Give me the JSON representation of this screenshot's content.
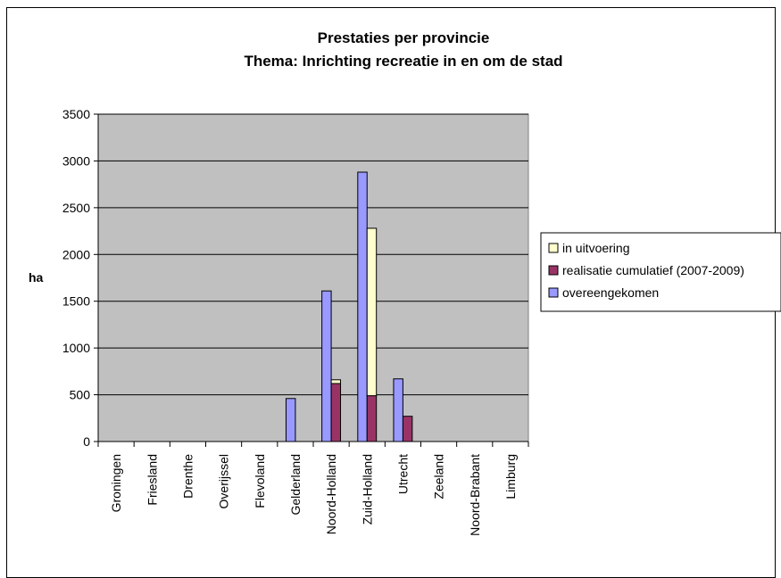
{
  "chart_data": {
    "type": "bar",
    "title": "Prestaties per provincie",
    "subtitle": "Thema: Inrichting recreatie in en om de stad",
    "xlabel": "",
    "ylabel": "ha",
    "ylim": [
      0,
      3500
    ],
    "yticks": [
      0,
      500,
      1000,
      1500,
      2000,
      2500,
      3000,
      3500
    ],
    "grid": true,
    "legend": "right",
    "categories": [
      "Groningen",
      "Friesland",
      "Drenthe",
      "Overijssel",
      "Flevoland",
      "Gelderland",
      "Noord-Holland",
      "Zuid-Holland",
      "Utrecht",
      "Zeeland",
      "Noord-Brabant",
      "Limburg"
    ],
    "series": [
      {
        "name": "overeengekomen",
        "color": "#9999ff",
        "stack": "a",
        "values": [
          0,
          0,
          0,
          0,
          0,
          460,
          1610,
          2880,
          670,
          0,
          0,
          0
        ]
      },
      {
        "name": "realisatie cumulatief (2007-2009)",
        "color": "#993366",
        "stack": "b",
        "values": [
          0,
          0,
          0,
          0,
          0,
          0,
          620,
          490,
          270,
          0,
          0,
          0
        ]
      },
      {
        "name": "in uitvoering",
        "color": "#ffffcc",
        "stack": "b",
        "values": [
          0,
          0,
          0,
          0,
          0,
          0,
          40,
          1790,
          0,
          0,
          0,
          0
        ]
      }
    ],
    "legend_order": [
      "in uitvoering",
      "realisatie cumulatief (2007-2009)",
      "overeengekomen"
    ],
    "plot_background": "#c0c0c0"
  }
}
